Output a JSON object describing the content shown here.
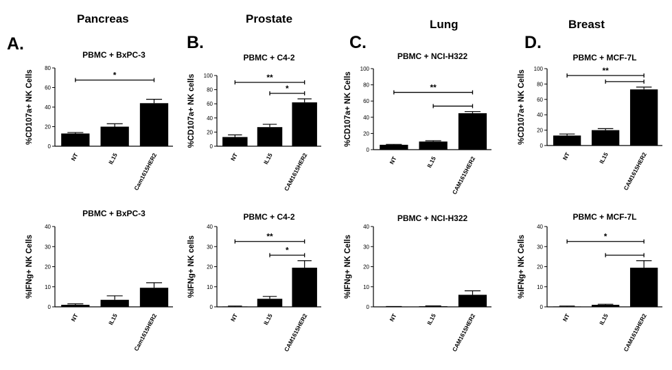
{
  "headers": [
    {
      "letter": "A.",
      "title": "Pancreas"
    },
    {
      "letter": "B.",
      "title": "Prostate"
    },
    {
      "letter": "C.",
      "title": "Lung"
    },
    {
      "letter": "D.",
      "title": "Breast"
    }
  ],
  "chart_data": [
    {
      "type": "bar",
      "title": "PBMC + BxPC-3",
      "ylabel": "%CD107a+ NK Cells",
      "categories": [
        "NT",
        "IL15",
        "Cam1615HER2"
      ],
      "values": [
        13,
        20,
        44
      ],
      "errors": [
        1,
        3,
        4
      ],
      "ylim": [
        0,
        80
      ],
      "yticks": [
        0,
        20,
        40,
        60,
        80
      ],
      "significance": [
        {
          "from": 0,
          "to": 2,
          "label": "*"
        }
      ]
    },
    {
      "type": "bar",
      "title": "PBMC + C4-2",
      "ylabel": "%CD107a+ NK cells",
      "categories": [
        "NT",
        "IL15",
        "CAM1615HER2"
      ],
      "values": [
        13,
        27,
        62
      ],
      "errors": [
        3,
        4,
        5
      ],
      "ylim": [
        0,
        100
      ],
      "yticks": [
        0,
        20,
        40,
        60,
        80,
        100
      ],
      "significance": [
        {
          "from": 0,
          "to": 2,
          "label": "**"
        },
        {
          "from": 1,
          "to": 2,
          "label": "*"
        }
      ]
    },
    {
      "type": "bar",
      "title": "PBMC + NCI-H322",
      "ylabel": "%CD107a+ NK Cells",
      "categories": [
        "NT",
        "IL15",
        "CAM1615HER2"
      ],
      "values": [
        6,
        10,
        45
      ],
      "errors": [
        0.5,
        1,
        2
      ],
      "ylim": [
        0,
        100
      ],
      "yticks": [
        0,
        20,
        40,
        60,
        80,
        100
      ],
      "significance": [
        {
          "from": 0,
          "to": 2,
          "label": "**"
        },
        {
          "from": 1,
          "to": 2,
          "label": ""
        }
      ]
    },
    {
      "type": "bar",
      "title": "PBMC + MCF-7L",
      "ylabel": "%CD107a+ NK Cells",
      "categories": [
        "NT",
        "IL15",
        "CAM1615HER2"
      ],
      "values": [
        13,
        20,
        73
      ],
      "errors": [
        2,
        2,
        3
      ],
      "ylim": [
        0,
        100
      ],
      "yticks": [
        0,
        20,
        40,
        60,
        80,
        100
      ],
      "significance": [
        {
          "from": 0,
          "to": 2,
          "label": "**"
        },
        {
          "from": 1,
          "to": 2,
          "label": ""
        }
      ]
    },
    {
      "type": "bar",
      "title": "PBMC + BxPC-3",
      "ylabel": "%IFNg+ NK Cells",
      "categories": [
        "NT",
        "IL15",
        "Cam1615HER2"
      ],
      "values": [
        1,
        3.5,
        9.5
      ],
      "errors": [
        0.5,
        2,
        2.5
      ],
      "ylim": [
        0,
        40
      ],
      "yticks": [
        0,
        10,
        20,
        30,
        40
      ],
      "significance": []
    },
    {
      "type": "bar",
      "title": "PBMC + C4-2",
      "ylabel": "%IFNg+ NK cells",
      "categories": [
        "NT",
        "IL15",
        "CAM1615HER2"
      ],
      "values": [
        0.2,
        4,
        19.5
      ],
      "errors": [
        0.2,
        1.2,
        3.5
      ],
      "ylim": [
        0,
        40
      ],
      "yticks": [
        0,
        10,
        20,
        30,
        40
      ],
      "significance": [
        {
          "from": 0,
          "to": 2,
          "label": "**"
        },
        {
          "from": 1,
          "to": 2,
          "label": "*"
        }
      ]
    },
    {
      "type": "bar",
      "title": "PBMC + NCI-H322",
      "ylabel": "%IFNg+ NK Cells",
      "categories": [
        "NT",
        "IL15",
        "CAM1615HER2"
      ],
      "values": [
        0.1,
        0.3,
        6
      ],
      "errors": [
        0.1,
        0.2,
        2
      ],
      "ylim": [
        0,
        40
      ],
      "yticks": [
        0,
        10,
        20,
        30,
        40
      ],
      "significance": []
    },
    {
      "type": "bar",
      "title": "PBMC + MCF-7L",
      "ylabel": "%IFNg+ NK Cells",
      "categories": [
        "NT",
        "IL15",
        "CAM1615HER2"
      ],
      "values": [
        0.2,
        1,
        19.5
      ],
      "errors": [
        0.2,
        0.3,
        3.5
      ],
      "ylim": [
        0,
        40
      ],
      "yticks": [
        0,
        10,
        20,
        30,
        40
      ],
      "significance": [
        {
          "from": 0,
          "to": 2,
          "label": "*"
        },
        {
          "from": 1,
          "to": 2,
          "label": ""
        }
      ]
    }
  ]
}
